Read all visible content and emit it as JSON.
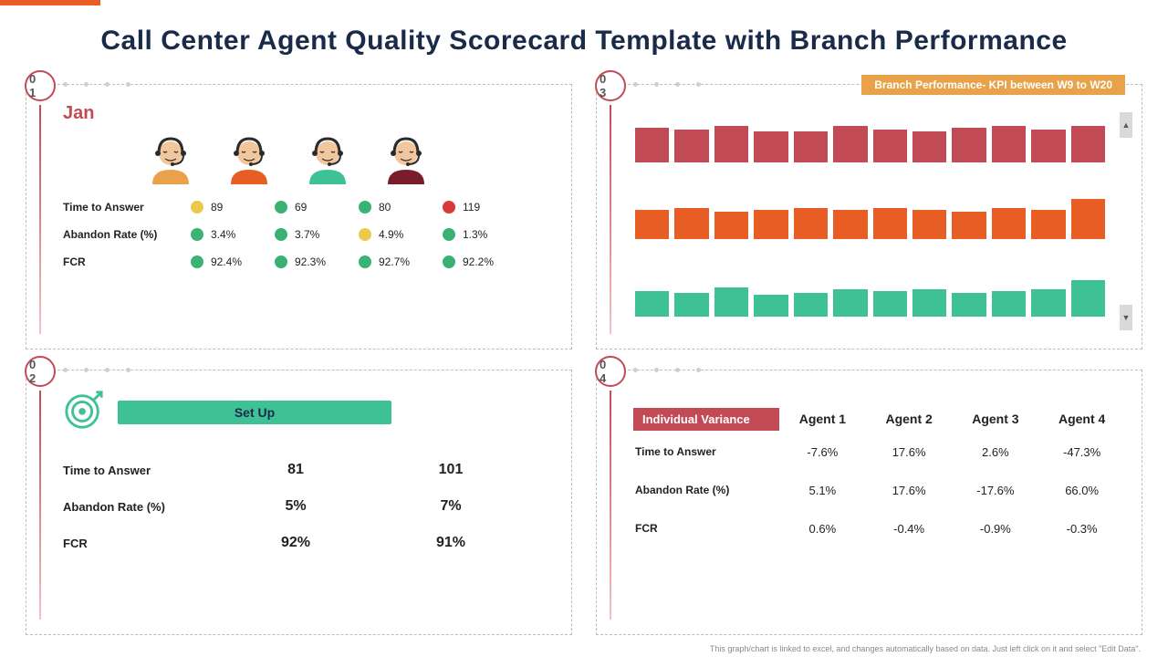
{
  "title": "Call Center Agent Quality Scorecard Template with Branch Performance",
  "accent_color": "#e85d24",
  "badge_border": "#c24a55",
  "panels": {
    "p1": {
      "id": "0 1",
      "month": "Jan",
      "agent_shirts": [
        "#e9a24a",
        "#e85d24",
        "#3fc196",
        "#7a1d2b"
      ],
      "skin": "#f2c79e",
      "headset": "#2b2b2b",
      "rows": [
        {
          "label": "Time to Answer",
          "cells": [
            {
              "dot": "#ecc94b",
              "val": "89"
            },
            {
              "dot": "#3bb273",
              "val": "69"
            },
            {
              "dot": "#3bb273",
              "val": "80"
            },
            {
              "dot": "#d93a3a",
              "val": "119"
            }
          ]
        },
        {
          "label": "Abandon Rate (%)",
          "cells": [
            {
              "dot": "#3bb273",
              "val": "3.4%"
            },
            {
              "dot": "#3bb273",
              "val": "3.7%"
            },
            {
              "dot": "#ecc94b",
              "val": "4.9%"
            },
            {
              "dot": "#3bb273",
              "val": "1.3%"
            }
          ]
        },
        {
          "label": "FCR",
          "cells": [
            {
              "dot": "#3bb273",
              "val": "92.4%"
            },
            {
              "dot": "#3bb273",
              "val": "92.3%"
            },
            {
              "dot": "#3bb273",
              "val": "92.7%"
            },
            {
              "dot": "#3bb273",
              "val": "92.2%"
            }
          ]
        }
      ]
    },
    "p2": {
      "id": "0 2",
      "pill": "Set Up",
      "pill_bg": "#3fc196",
      "target_icon_color": "#3fc196",
      "rows": [
        {
          "label": "Time to  Answer",
          "v1": "81",
          "v2": "101"
        },
        {
          "label": "Abandon Rate (%)",
          "v1": "5%",
          "v2": "7%"
        },
        {
          "label": "FCR",
          "v1": "92%",
          "v2": "91%"
        }
      ]
    },
    "p3": {
      "id": "0 3",
      "header": "Branch Performance- KPI between W9 to W20",
      "header_bg": "#e9a24a",
      "series": [
        {
          "color": "#c24a55",
          "heights": [
            38,
            36,
            40,
            34,
            34,
            40,
            36,
            34,
            38,
            40,
            36,
            40
          ]
        },
        {
          "color": "#e85d24",
          "heights": [
            32,
            34,
            30,
            32,
            34,
            32,
            34,
            32,
            30,
            34,
            32,
            44
          ]
        },
        {
          "color": "#3fc196",
          "heights": [
            28,
            26,
            32,
            24,
            26,
            30,
            28,
            30,
            26,
            28,
            30,
            40
          ]
        }
      ],
      "bar_count": 12
    },
    "p4": {
      "id": "0 4",
      "badge": "Individual Variance",
      "badge_bg": "#c24a55",
      "columns": [
        "Agent 1",
        "Agent 2",
        "Agent 3",
        "Agent 4"
      ],
      "rows": [
        {
          "label": "Time to  Answer",
          "cells": [
            "-7.6%",
            "17.6%",
            "2.6%",
            "-47.3%"
          ]
        },
        {
          "label": "Abandon Rate (%)",
          "cells": [
            "5.1%",
            "17.6%",
            "-17.6%",
            "66.0%"
          ]
        },
        {
          "label": "FCR",
          "cells": [
            "0.6%",
            "-0.4%",
            "-0.9%",
            "-0.3%"
          ]
        }
      ]
    }
  },
  "footnote": "This graph/chart is linked to excel, and changes automatically based on data. Just left click on it and select \"Edit Data\"."
}
